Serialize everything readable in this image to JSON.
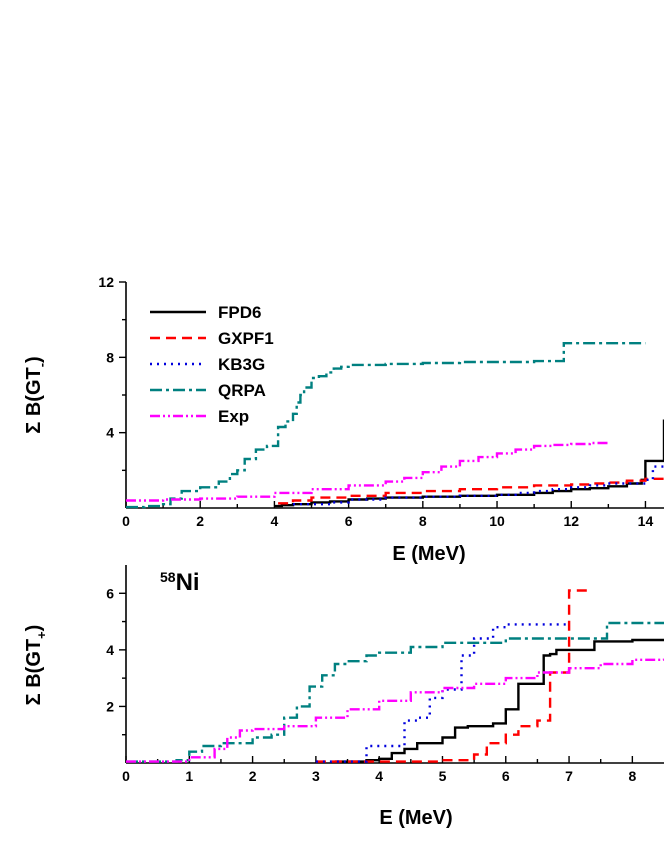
{
  "chart_data": [
    {
      "type": "line",
      "step": true,
      "panel": "top",
      "ylabel_main": "Σ B(GT",
      "ylabel_sub": "-",
      "ylabel_tail": ")",
      "xlabel": "E (MeV)",
      "xlim": [
        0,
        14.5
      ],
      "ylim": [
        0,
        12
      ],
      "xticks": [
        0,
        2,
        4,
        6,
        8,
        10,
        12,
        14
      ],
      "xtick_labels": [
        "0",
        "2",
        "4",
        "6",
        "8",
        "10",
        "12",
        "14"
      ],
      "yticks": [
        4,
        8,
        12
      ],
      "ytick_labels": [
        "4",
        "8",
        "12"
      ],
      "legend_placement": "top-left",
      "series": [
        {
          "name": "FPD6",
          "color": "#000000",
          "dash": "solid",
          "x": [
            4.0,
            4.2,
            4.5,
            5.0,
            5.5,
            6.0,
            6.5,
            7.0,
            8.0,
            9.0,
            10.0,
            11.0,
            11.5,
            12.0,
            12.5,
            13.0,
            13.5,
            13.9,
            14.0,
            14.4,
            14.5
          ],
          "y": [
            0.1,
            0.15,
            0.2,
            0.3,
            0.35,
            0.45,
            0.5,
            0.55,
            0.6,
            0.65,
            0.7,
            0.8,
            0.9,
            1.0,
            1.05,
            1.15,
            1.3,
            1.5,
            2.5,
            2.5,
            4.7
          ]
        },
        {
          "name": "GXPF1",
          "color": "#ff0000",
          "dash": "10,6",
          "x": [
            4.1,
            4.5,
            5.0,
            6.0,
            7.0,
            8.0,
            9.0,
            10.0,
            11.0,
            12.0,
            12.5,
            13.0,
            13.5,
            14.0,
            14.5
          ],
          "y": [
            0.25,
            0.4,
            0.55,
            0.65,
            0.8,
            0.9,
            1.0,
            1.1,
            1.2,
            1.25,
            1.3,
            1.35,
            1.45,
            1.55,
            1.7
          ]
        },
        {
          "name": "KB3G",
          "color": "#0000dd",
          "dash": "2,5",
          "x": [
            4.5,
            5.5,
            6.0,
            7.0,
            8.0,
            9.0,
            10.0,
            10.5,
            11.0,
            11.5,
            12.0,
            12.5,
            13.0,
            14.0,
            14.2,
            14.5
          ],
          "y": [
            0.2,
            0.3,
            0.45,
            0.55,
            0.6,
            0.65,
            0.7,
            0.8,
            0.9,
            1.0,
            1.1,
            1.2,
            1.3,
            1.5,
            2.2,
            2.2
          ]
        },
        {
          "name": "QRPA",
          "color": "#008080",
          "dash": "12,4,3,4",
          "x": [
            0.0,
            0.5,
            1.0,
            1.2,
            1.5,
            2.0,
            2.5,
            2.8,
            3.0,
            3.2,
            3.5,
            3.8,
            4.1,
            4.3,
            4.5,
            4.6,
            4.7,
            4.8,
            5.0,
            5.2,
            5.4,
            5.6,
            5.8,
            6.0,
            7.0,
            8.0,
            9.0,
            10.0,
            11.0,
            11.8,
            12.0,
            13.0,
            14.0
          ],
          "y": [
            0.05,
            0.1,
            0.2,
            0.5,
            0.9,
            1.1,
            1.4,
            1.8,
            2.0,
            2.6,
            3.1,
            3.3,
            4.3,
            4.6,
            5.0,
            5.6,
            6.0,
            6.4,
            6.9,
            7.0,
            7.2,
            7.4,
            7.5,
            7.6,
            7.65,
            7.7,
            7.75,
            7.75,
            7.8,
            8.75,
            8.75,
            8.75,
            8.75
          ]
        },
        {
          "name": "Exp",
          "color": "#ff00ff",
          "dash": "10,3,2,3,2,3",
          "x": [
            0.0,
            1.0,
            2.0,
            3.0,
            4.0,
            5.0,
            6.0,
            7.0,
            7.5,
            8.0,
            8.5,
            9.0,
            9.5,
            10.0,
            10.5,
            11.0,
            11.5,
            12.0,
            12.5,
            13.0
          ],
          "y": [
            0.4,
            0.45,
            0.5,
            0.6,
            0.8,
            1.0,
            1.2,
            1.4,
            1.6,
            1.9,
            2.2,
            2.5,
            2.7,
            2.9,
            3.1,
            3.3,
            3.35,
            3.4,
            3.45,
            3.45
          ]
        }
      ]
    },
    {
      "type": "line",
      "step": true,
      "panel": "bottom",
      "annotation_sup": "58",
      "annotation_main": "Ni",
      "ylabel_main": "Σ B(GT",
      "ylabel_sub": "+",
      "ylabel_tail": ")",
      "xlabel": "E (MeV)",
      "xlim": [
        0,
        8.5
      ],
      "ylim": [
        0,
        7
      ],
      "xticks": [
        0,
        1,
        2,
        3,
        4,
        5,
        6,
        7,
        8
      ],
      "xtick_labels": [
        "0",
        "1",
        "2",
        "3",
        "4",
        "5",
        "6",
        "7",
        "8"
      ],
      "yticks": [
        2,
        4,
        6
      ],
      "ytick_labels": [
        "2",
        "4",
        "6"
      ],
      "series": [
        {
          "name": "FPD6",
          "color": "#000000",
          "dash": "solid",
          "x": [
            3.3,
            3.8,
            4.0,
            4.2,
            4.4,
            4.6,
            5.0,
            5.2,
            5.4,
            5.8,
            6.0,
            6.2,
            6.4,
            6.6,
            6.7,
            6.8,
            7.0,
            7.4,
            7.8,
            8.0,
            8.5
          ],
          "y": [
            0.05,
            0.1,
            0.15,
            0.35,
            0.5,
            0.7,
            0.9,
            1.25,
            1.3,
            1.4,
            1.9,
            2.8,
            2.8,
            3.8,
            3.85,
            4.0,
            4.0,
            4.3,
            4.3,
            4.35,
            4.35
          ]
        },
        {
          "name": "GXPF1",
          "color": "#ff0000",
          "dash": "10,6",
          "x": [
            3.0,
            4.0,
            5.0,
            5.5,
            5.7,
            6.0,
            6.2,
            6.5,
            6.7,
            7.0,
            7.3
          ],
          "y": [
            0.05,
            0.05,
            0.1,
            0.3,
            0.7,
            1.0,
            1.3,
            1.5,
            3.2,
            6.1,
            6.1
          ]
        },
        {
          "name": "KB3G",
          "color": "#0000dd",
          "dash": "2,5",
          "x": [
            3.0,
            3.8,
            4.0,
            4.4,
            4.6,
            4.8,
            5.0,
            5.2,
            5.3,
            5.5,
            5.8,
            6.0,
            6.5,
            7.0
          ],
          "y": [
            0.05,
            0.6,
            0.6,
            1.5,
            1.6,
            2.3,
            2.6,
            2.6,
            3.8,
            4.4,
            4.8,
            4.9,
            4.9,
            4.9
          ]
        },
        {
          "name": "QRPA",
          "color": "#008080",
          "dash": "12,4,3,4",
          "x": [
            0.0,
            0.8,
            1.0,
            1.2,
            1.5,
            2.0,
            2.3,
            2.5,
            2.7,
            2.9,
            3.1,
            3.3,
            3.5,
            3.8,
            4.0,
            4.5,
            5.0,
            6.0,
            7.0,
            7.6,
            8.5
          ],
          "y": [
            0.05,
            0.1,
            0.4,
            0.6,
            0.7,
            0.9,
            1.0,
            1.6,
            2.0,
            2.7,
            3.1,
            3.5,
            3.6,
            3.8,
            3.9,
            4.1,
            4.25,
            4.4,
            4.4,
            4.95,
            4.95
          ]
        },
        {
          "name": "Exp",
          "color": "#ff00ff",
          "dash": "10,3,2,3,2,3",
          "x": [
            0.0,
            1.0,
            1.4,
            1.6,
            1.8,
            2.0,
            2.5,
            3.0,
            3.5,
            4.0,
            4.5,
            5.0,
            5.5,
            6.0,
            6.5,
            7.0,
            7.5,
            8.0,
            8.5
          ],
          "y": [
            0.05,
            0.2,
            0.5,
            0.9,
            1.15,
            1.2,
            1.3,
            1.6,
            1.9,
            2.2,
            2.5,
            2.65,
            2.8,
            3.0,
            3.2,
            3.35,
            3.5,
            3.65,
            3.7
          ]
        }
      ]
    }
  ]
}
